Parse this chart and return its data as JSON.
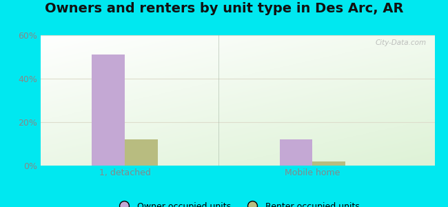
{
  "title": "Owners and renters by unit type in Des Arc, AR",
  "categories": [
    "1, detached",
    "Mobile home"
  ],
  "owner_values": [
    51,
    12
  ],
  "renter_values": [
    12,
    2
  ],
  "owner_color": "#c4a8d4",
  "renter_color": "#b8bc80",
  "ylim": [
    0,
    60
  ],
  "yticks": [
    0,
    20,
    40,
    60
  ],
  "ytick_labels": [
    "0%",
    "20%",
    "40%",
    "60%"
  ],
  "bar_width": 0.35,
  "group_positions": [
    1.0,
    3.0
  ],
  "background_color_outer": "#00e8f0",
  "watermark": "City-Data.com",
  "legend_labels": [
    "Owner occupied units",
    "Renter occupied units"
  ],
  "title_fontsize": 14,
  "axis_fontsize": 9,
  "grid_color": "#ddddcc",
  "tick_color": "#888888",
  "divider_x": 2.0,
  "xlim": [
    0.1,
    4.3
  ]
}
